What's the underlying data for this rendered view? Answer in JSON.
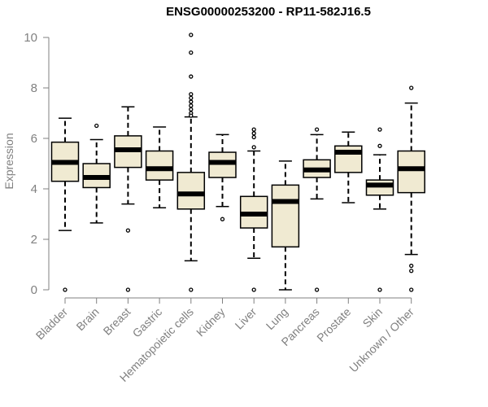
{
  "chart_data": {
    "type": "boxplot",
    "title": "ENSG00000253200 - RP11-582J16.5",
    "xlabel": "",
    "ylabel": "Expression",
    "ylim": [
      0,
      10
    ],
    "yticks": [
      0,
      2,
      4,
      6,
      8,
      10
    ],
    "grid": false,
    "box_color": "#f0ead2",
    "median_color": "#000000",
    "categories": [
      "Bladder",
      "Brain",
      "Breast",
      "Gastric",
      "Hematopoietic cells",
      "Kidney",
      "Liver",
      "Lung",
      "Pancreas",
      "Prostate",
      "Skin",
      "Unknown / Other"
    ],
    "boxes": [
      {
        "whisker_low": 2.35,
        "q1": 4.3,
        "median": 5.05,
        "q3": 5.85,
        "whisker_high": 6.8,
        "outliers": [
          0.0
        ]
      },
      {
        "whisker_low": 2.65,
        "q1": 4.05,
        "median": 4.45,
        "q3": 5.0,
        "whisker_high": 5.95,
        "outliers": [
          6.5
        ]
      },
      {
        "whisker_low": 3.4,
        "q1": 4.85,
        "median": 5.55,
        "q3": 6.1,
        "whisker_high": 7.25,
        "outliers": [
          2.35,
          0.0
        ]
      },
      {
        "whisker_low": 3.25,
        "q1": 4.35,
        "median": 4.8,
        "q3": 5.5,
        "whisker_high": 6.45,
        "outliers": []
      },
      {
        "whisker_low": 1.15,
        "q1": 3.2,
        "median": 3.8,
        "q3": 4.65,
        "whisker_high": 6.85,
        "outliers": [
          10.1,
          9.4,
          8.45,
          7.75,
          7.6,
          7.45,
          7.3,
          7.15,
          7.0,
          6.9,
          0.0
        ]
      },
      {
        "whisker_low": 3.3,
        "q1": 4.45,
        "median": 5.05,
        "q3": 5.45,
        "whisker_high": 6.15,
        "outliers": [
          2.8
        ]
      },
      {
        "whisker_low": 1.25,
        "q1": 2.45,
        "median": 3.0,
        "q3": 3.7,
        "whisker_high": 5.5,
        "outliers": [
          6.35,
          6.2,
          6.05,
          5.65,
          0.0
        ]
      },
      {
        "whisker_low": 0.0,
        "q1": 1.7,
        "median": 3.5,
        "q3": 4.15,
        "whisker_high": 5.1,
        "outliers": []
      },
      {
        "whisker_low": 3.6,
        "q1": 4.45,
        "median": 4.75,
        "q3": 5.15,
        "whisker_high": 6.15,
        "outliers": [
          6.35,
          0.0
        ]
      },
      {
        "whisker_low": 3.45,
        "q1": 4.65,
        "median": 5.45,
        "q3": 5.7,
        "whisker_high": 6.25,
        "outliers": []
      },
      {
        "whisker_low": 3.2,
        "q1": 3.75,
        "median": 4.15,
        "q3": 4.35,
        "whisker_high": 5.35,
        "outliers": [
          6.35,
          5.7,
          0.0
        ]
      },
      {
        "whisker_low": 1.4,
        "q1": 3.85,
        "median": 4.8,
        "q3": 5.5,
        "whisker_high": 7.4,
        "outliers": [
          8.0,
          0.95,
          0.75,
          0.0
        ]
      }
    ]
  }
}
